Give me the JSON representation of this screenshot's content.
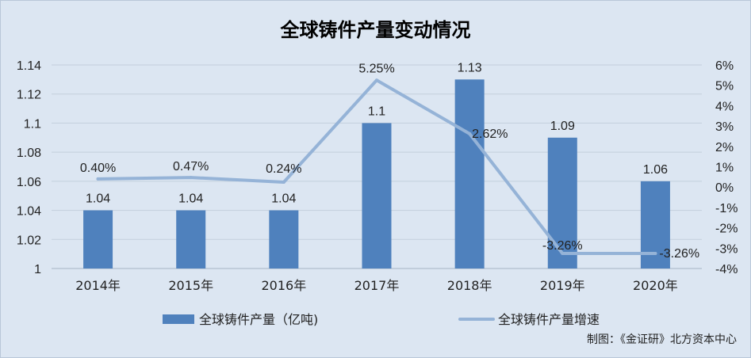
{
  "chart_data": {
    "type": "bar+line",
    "title": "全球铸件产量变动情况",
    "categories": [
      "2014年",
      "2015年",
      "2016年",
      "2017年",
      "2018年",
      "2019年",
      "2020年"
    ],
    "series": [
      {
        "name": "全球铸件产量（亿吨)",
        "type": "bar",
        "axis": "left",
        "color": "#4f81bd",
        "values": [
          1.04,
          1.04,
          1.04,
          1.1,
          1.13,
          1.09,
          1.06
        ],
        "labels": [
          "1.04",
          "1.04",
          "1.04",
          "1.1",
          "1.13",
          "1.09",
          "1.06"
        ]
      },
      {
        "name": "全球铸件产量增速",
        "type": "line",
        "axis": "right",
        "color": "#95b3d7",
        "values": [
          0.4,
          0.47,
          0.24,
          5.25,
          2.62,
          -3.26,
          -3.26
        ],
        "labels": [
          "0.40%",
          "0.47%",
          "0.24%",
          "5.25%",
          "2.62%",
          "-3.26%",
          "-3.26%"
        ]
      }
    ],
    "y_left": {
      "min": 1,
      "max": 1.14,
      "ticks": [
        "1",
        "1.02",
        "1.04",
        "1.06",
        "1.08",
        "1.1",
        "1.12",
        "1.14"
      ]
    },
    "y_right": {
      "min": -4,
      "max": 6,
      "unit": "%",
      "ticks": [
        "-4%",
        "-3%",
        "-2%",
        "-1%",
        "0%",
        "1%",
        "2%",
        "3%",
        "4%",
        "5%",
        "6%"
      ]
    },
    "grid": true,
    "legend_position": "bottom"
  },
  "source": "制图：《金证研》北方资本中心"
}
